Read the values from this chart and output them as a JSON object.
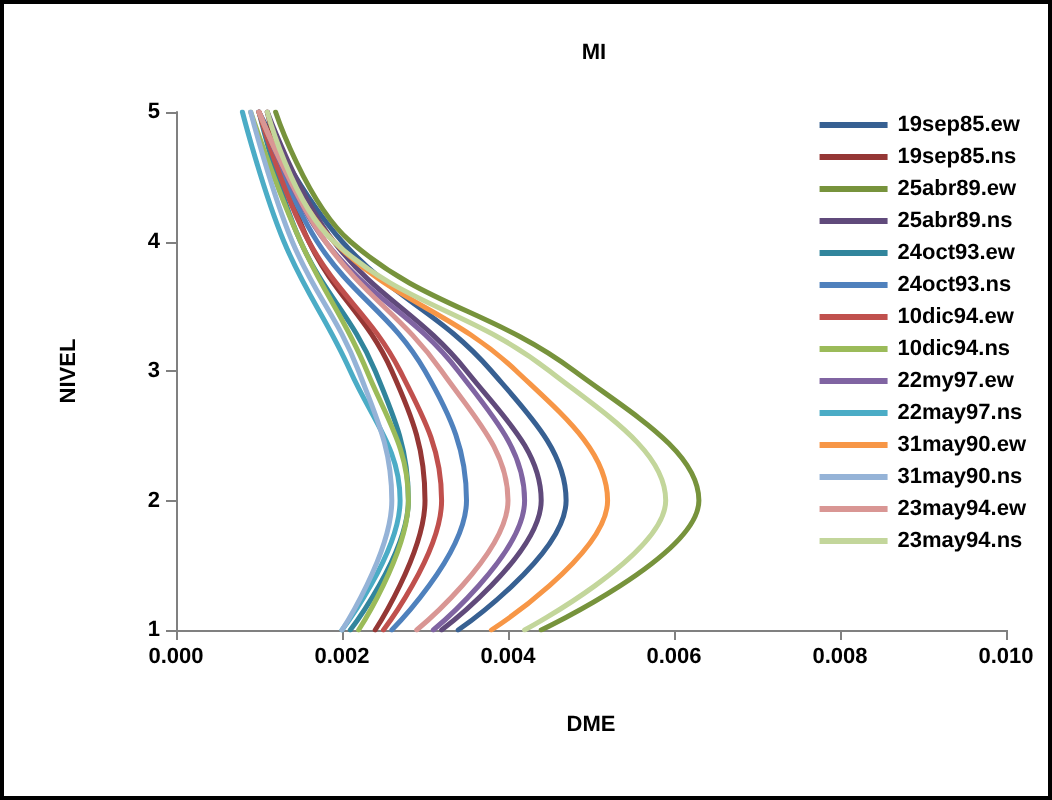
{
  "chart_data": {
    "type": "line",
    "title": "MI",
    "xlabel": "DME",
    "ylabel": "NIVEL",
    "xlim": [
      0,
      0.01
    ],
    "xticks": [
      {
        "value": 0,
        "label": "0.000"
      },
      {
        "value": 0.002,
        "label": "0.002"
      },
      {
        "value": 0.004,
        "label": "0.004"
      },
      {
        "value": 0.006,
        "label": "0.006"
      },
      {
        "value": 0.008,
        "label": "0.008"
      },
      {
        "value": 0.01,
        "label": "0.010"
      }
    ],
    "ylim": [
      1,
      5
    ],
    "yticks": [
      1,
      2,
      3,
      4,
      5
    ],
    "grid": false,
    "legend": "right",
    "marker": "none",
    "line_style": "solid",
    "series": [
      {
        "name": "19sep85.ew",
        "color": "#376092",
        "x": [
          0.0034,
          0.0047,
          0.0038,
          0.002,
          0.001
        ],
        "values": [
          1,
          2,
          3,
          4,
          5
        ]
      },
      {
        "name": "19sep85.ns",
        "color": "#953735",
        "x": [
          0.0024,
          0.003,
          0.0026,
          0.0016,
          0.0011
        ],
        "values": [
          1,
          2,
          3,
          4,
          5
        ]
      },
      {
        "name": "25abr89.ew",
        "color": "#77933c",
        "x": [
          0.0044,
          0.0063,
          0.0048,
          0.0021,
          0.0012
        ],
        "values": [
          1,
          2,
          3,
          4,
          5
        ]
      },
      {
        "name": "25abr89.ns",
        "color": "#604a7b",
        "x": [
          0.0032,
          0.0044,
          0.0035,
          0.0019,
          0.0011
        ],
        "values": [
          1,
          2,
          3,
          4,
          5
        ]
      },
      {
        "name": "24oct93.ew",
        "color": "#31859c",
        "x": [
          0.0021,
          0.0028,
          0.0024,
          0.0015,
          0.001
        ],
        "values": [
          1,
          2,
          3,
          4,
          5
        ]
      },
      {
        "name": "24oct93.ns",
        "color": "#4f81bd",
        "x": [
          0.0026,
          0.0035,
          0.003,
          0.0017,
          0.001
        ],
        "values": [
          1,
          2,
          3,
          4,
          5
        ]
      },
      {
        "name": "10dic94.ew",
        "color": "#c0504d",
        "x": [
          0.0025,
          0.0032,
          0.0027,
          0.0016,
          0.001
        ],
        "values": [
          1,
          2,
          3,
          4,
          5
        ]
      },
      {
        "name": "10dic94.ns",
        "color": "#9bbb59",
        "x": [
          0.0022,
          0.0028,
          0.0023,
          0.0015,
          0.0009
        ],
        "values": [
          1,
          2,
          3,
          4,
          5
        ]
      },
      {
        "name": "22my97.ew",
        "color": "#8064a2",
        "x": [
          0.0031,
          0.0042,
          0.0034,
          0.0018,
          0.001
        ],
        "values": [
          1,
          2,
          3,
          4,
          5
        ]
      },
      {
        "name": "22may97.ns",
        "color": "#4bacc6",
        "x": [
          0.002,
          0.0027,
          0.0021,
          0.0013,
          0.0008
        ],
        "values": [
          1,
          2,
          3,
          4,
          5
        ]
      },
      {
        "name": "31may90.ew",
        "color": "#f79646",
        "x": [
          0.0038,
          0.0052,
          0.0041,
          0.0019,
          0.001
        ],
        "values": [
          1,
          2,
          3,
          4,
          5
        ]
      },
      {
        "name": "31may90.ns",
        "color": "#95b3d7",
        "x": [
          0.002,
          0.0026,
          0.0022,
          0.0014,
          0.0009
        ],
        "values": [
          1,
          2,
          3,
          4,
          5
        ]
      },
      {
        "name": "23may94.ew",
        "color": "#d99694",
        "x": [
          0.0029,
          0.004,
          0.0032,
          0.0018,
          0.001
        ],
        "values": [
          1,
          2,
          3,
          4,
          5
        ]
      },
      {
        "name": "23may94.ns",
        "color": "#c3d69b",
        "x": [
          0.0042,
          0.0059,
          0.0045,
          0.0019,
          0.0011
        ],
        "values": [
          1,
          2,
          3,
          4,
          5
        ]
      }
    ]
  }
}
